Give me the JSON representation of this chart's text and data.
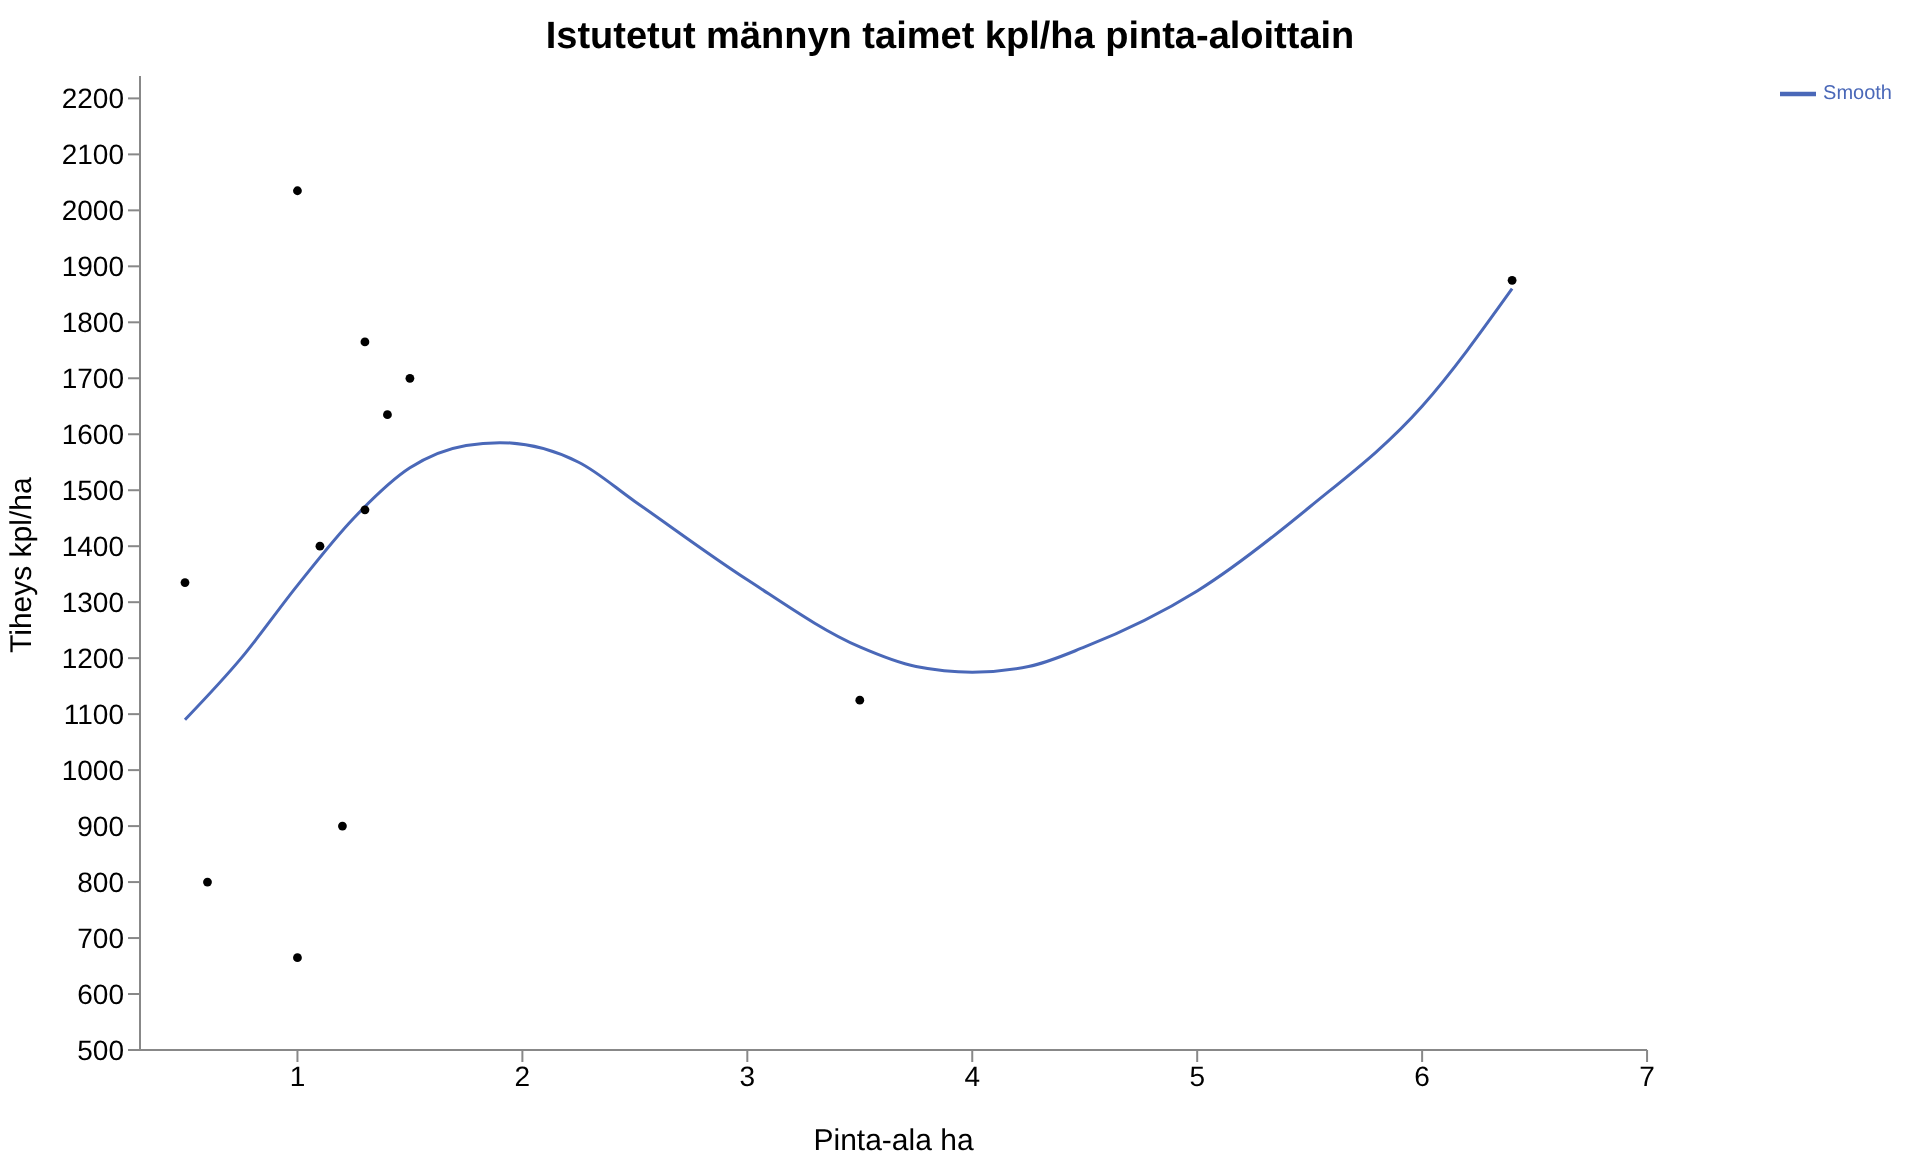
{
  "chart_data": {
    "type": "scatter",
    "title": "Istutetut männyn taimet kpl/ha pinta-aloittain",
    "xlabel": "Pinta-ala ha",
    "ylabel": "Tiheys kpl/ha",
    "xlim": [
      0.3,
      7
    ],
    "xticks": [
      1,
      2,
      3,
      4,
      5,
      6,
      7
    ],
    "ylim": [
      500,
      2240
    ],
    "yticks": [
      500,
      600,
      700,
      800,
      900,
      1000,
      1100,
      1200,
      1300,
      1400,
      1500,
      1600,
      1700,
      1800,
      1900,
      2000,
      2100,
      2200
    ],
    "grid": false,
    "legend": "top right",
    "series": [
      {
        "color": "#000000",
        "marker": "circle",
        "x": [
          0.5,
          0.6,
          1.0,
          1.0,
          1.1,
          1.2,
          1.3,
          1.3,
          1.4,
          1.5,
          3.5,
          6.4
        ],
        "values": [
          1335,
          800,
          2035,
          665,
          1400,
          900,
          1765,
          1465,
          1635,
          1700,
          1125,
          1875
        ]
      },
      {
        "type": "line",
        "name": "Smooth",
        "color": "#4a68b8",
        "marker": "none",
        "line_style": "solid",
        "x": [
          0.5,
          0.75,
          1.0,
          1.25,
          1.5,
          1.75,
          1.9,
          2.25,
          2.5,
          3.0,
          3.5,
          3.75,
          4.0,
          4.25,
          4.5,
          5.0,
          5.5,
          6.0,
          6.4
        ],
        "values": [
          1090,
          1200,
          1330,
          1450,
          1540,
          1580,
          1585,
          1550,
          1480,
          1340,
          1220,
          1185,
          1175,
          1185,
          1220,
          1320,
          1470,
          1650,
          1860
        ]
      }
    ]
  }
}
